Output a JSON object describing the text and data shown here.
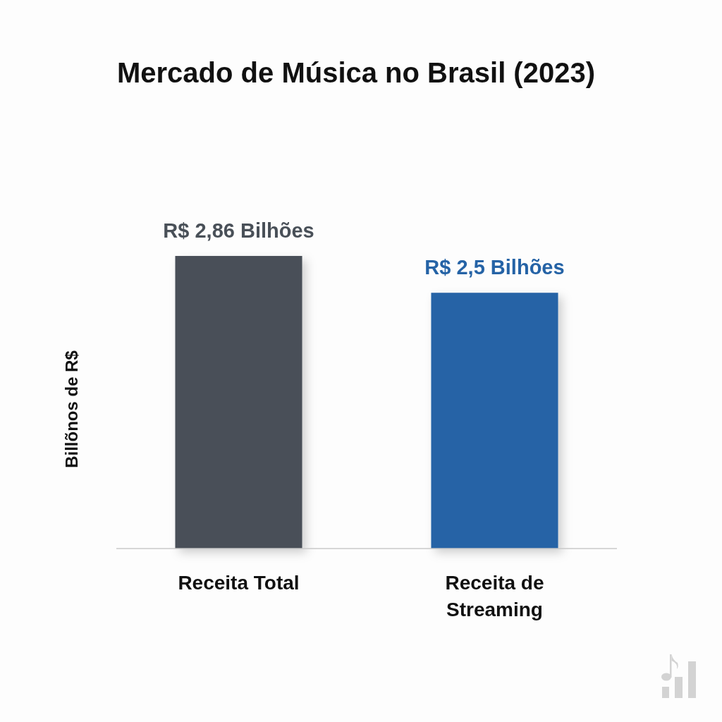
{
  "chart_data": {
    "type": "bar",
    "title": "Mercado de Música no Brasil (2023)",
    "ylabel": "Billõnos de R$",
    "categories": [
      "Receita Total",
      "Receita de Streaming"
    ],
    "values": [
      2.86,
      2.5
    ],
    "colors": [
      "#495058",
      "#2563a6"
    ],
    "value_labels": [
      "R$ 2,86 Bilhões",
      "R$ 2,5 Bilhões"
    ]
  }
}
